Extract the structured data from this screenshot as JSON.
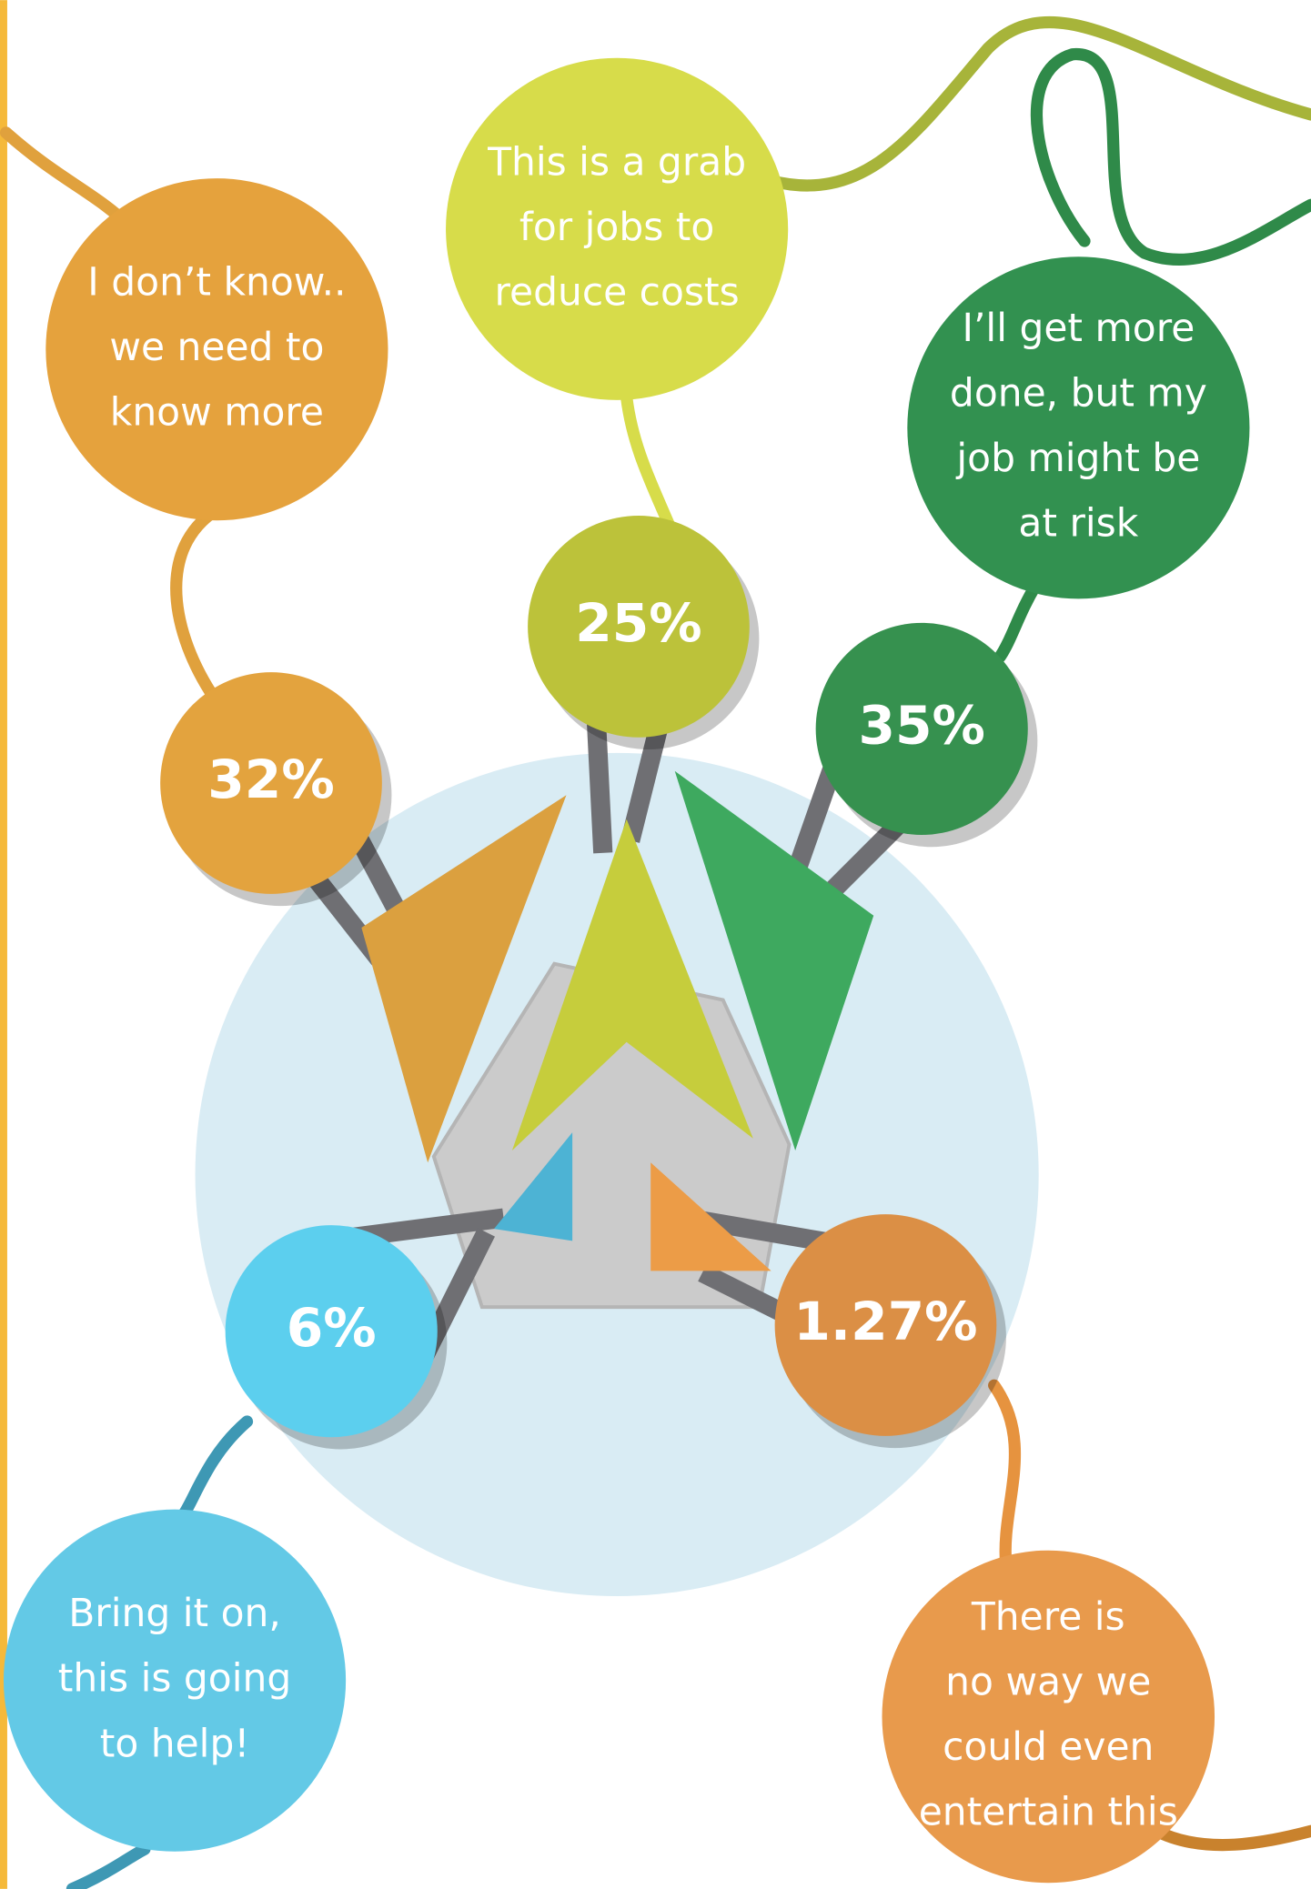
{
  "chart_data": {
    "type": "infographic",
    "categories": [
      "I don’t know..\nwe need to\nknow more",
      "This is a grab\nfor jobs to\nreduce costs",
      "I’ll get more\ndone, but my\njob might be\nat risk",
      "Bring it on,\nthis is going\nto help!",
      "There is\nno way we\ncould even\nentertain this"
    ],
    "values": [
      32,
      25,
      35,
      6,
      1.27
    ],
    "value_labels": [
      "32%",
      "25%",
      "35%",
      "6%",
      "1.27%"
    ],
    "colors": [
      "#e3a33e",
      "#bcc23a",
      "#36914f",
      "#5ccfee",
      "#db8f45"
    ]
  }
}
